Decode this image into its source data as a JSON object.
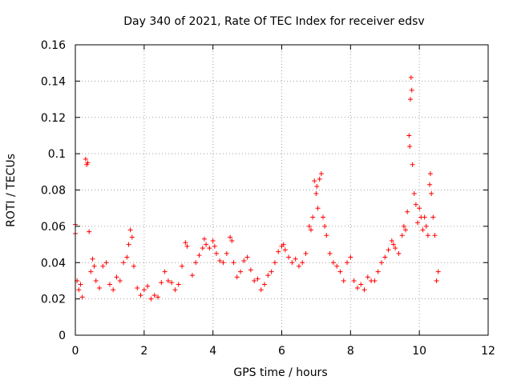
{
  "chart_data": {
    "type": "scatter",
    "title": "Day 340 of 2021, Rate Of TEC Index for receiver edsv",
    "xlabel": "GPS time / hours",
    "ylabel": "ROTI / TECUs",
    "xlim": [
      0,
      12
    ],
    "ylim": [
      0,
      0.16
    ],
    "xticks": [
      0,
      2,
      4,
      6,
      8,
      10,
      12
    ],
    "xtick_labels": [
      "0",
      "2",
      "4",
      "6",
      "8",
      "10",
      "12"
    ],
    "yticks": [
      0,
      0.02,
      0.04,
      0.06,
      0.08,
      0.1,
      0.12,
      0.14,
      0.16
    ],
    "ytick_labels": [
      "0",
      "0.02",
      "0.04",
      "0.06",
      "0.08",
      "0.1",
      "0.12",
      "0.14",
      "0.16"
    ],
    "grid": true,
    "marker": "+",
    "marker_color": "#ff0000",
    "series": [
      {
        "name": "ROTI",
        "points": [
          [
            0.0,
            0.061
          ],
          [
            0.0,
            0.056
          ],
          [
            0.05,
            0.03
          ],
          [
            0.1,
            0.025
          ],
          [
            0.15,
            0.028
          ],
          [
            0.2,
            0.021
          ],
          [
            0.3,
            0.097
          ],
          [
            0.33,
            0.094
          ],
          [
            0.36,
            0.095
          ],
          [
            0.4,
            0.057
          ],
          [
            0.45,
            0.035
          ],
          [
            0.5,
            0.042
          ],
          [
            0.55,
            0.038
          ],
          [
            0.6,
            0.03
          ],
          [
            0.7,
            0.026
          ],
          [
            0.8,
            0.038
          ],
          [
            0.9,
            0.04
          ],
          [
            1.0,
            0.028
          ],
          [
            1.1,
            0.025
          ],
          [
            1.2,
            0.032
          ],
          [
            1.3,
            0.03
          ],
          [
            1.4,
            0.04
          ],
          [
            1.5,
            0.043
          ],
          [
            1.55,
            0.05
          ],
          [
            1.6,
            0.058
          ],
          [
            1.65,
            0.054
          ],
          [
            1.7,
            0.038
          ],
          [
            1.8,
            0.026
          ],
          [
            1.9,
            0.022
          ],
          [
            2.0,
            0.025
          ],
          [
            2.1,
            0.027
          ],
          [
            2.2,
            0.02
          ],
          [
            2.3,
            0.022
          ],
          [
            2.4,
            0.021
          ],
          [
            2.5,
            0.029
          ],
          [
            2.6,
            0.035
          ],
          [
            2.7,
            0.03
          ],
          [
            2.8,
            0.029
          ],
          [
            2.9,
            0.025
          ],
          [
            3.0,
            0.028
          ],
          [
            3.1,
            0.038
          ],
          [
            3.2,
            0.051
          ],
          [
            3.25,
            0.049
          ],
          [
            3.4,
            0.033
          ],
          [
            3.5,
            0.04
          ],
          [
            3.6,
            0.044
          ],
          [
            3.7,
            0.048
          ],
          [
            3.75,
            0.053
          ],
          [
            3.8,
            0.05
          ],
          [
            3.9,
            0.048
          ],
          [
            4.0,
            0.052
          ],
          [
            4.05,
            0.049
          ],
          [
            4.1,
            0.045
          ],
          [
            4.2,
            0.041
          ],
          [
            4.3,
            0.04
          ],
          [
            4.4,
            0.045
          ],
          [
            4.5,
            0.054
          ],
          [
            4.55,
            0.052
          ],
          [
            4.6,
            0.04
          ],
          [
            4.7,
            0.032
          ],
          [
            4.8,
            0.035
          ],
          [
            4.9,
            0.041
          ],
          [
            5.0,
            0.043
          ],
          [
            5.1,
            0.036
          ],
          [
            5.2,
            0.03
          ],
          [
            5.3,
            0.031
          ],
          [
            5.4,
            0.025
          ],
          [
            5.5,
            0.028
          ],
          [
            5.6,
            0.033
          ],
          [
            5.7,
            0.035
          ],
          [
            5.8,
            0.04
          ],
          [
            5.9,
            0.046
          ],
          [
            6.0,
            0.049
          ],
          [
            6.05,
            0.05
          ],
          [
            6.1,
            0.047
          ],
          [
            6.2,
            0.043
          ],
          [
            6.3,
            0.04
          ],
          [
            6.4,
            0.042
          ],
          [
            6.5,
            0.038
          ],
          [
            6.6,
            0.04
          ],
          [
            6.7,
            0.045
          ],
          [
            6.8,
            0.06
          ],
          [
            6.85,
            0.058
          ],
          [
            6.9,
            0.065
          ],
          [
            6.95,
            0.085
          ],
          [
            7.0,
            0.078
          ],
          [
            7.02,
            0.082
          ],
          [
            7.05,
            0.07
          ],
          [
            7.1,
            0.086
          ],
          [
            7.15,
            0.089
          ],
          [
            7.2,
            0.065
          ],
          [
            7.25,
            0.06
          ],
          [
            7.3,
            0.055
          ],
          [
            7.4,
            0.045
          ],
          [
            7.5,
            0.04
          ],
          [
            7.6,
            0.038
          ],
          [
            7.7,
            0.035
          ],
          [
            7.8,
            0.03
          ],
          [
            7.9,
            0.04
          ],
          [
            8.0,
            0.043
          ],
          [
            8.1,
            0.03
          ],
          [
            8.2,
            0.026
          ],
          [
            8.3,
            0.028
          ],
          [
            8.4,
            0.025
          ],
          [
            8.5,
            0.032
          ],
          [
            8.6,
            0.03
          ],
          [
            8.7,
            0.03
          ],
          [
            8.8,
            0.035
          ],
          [
            8.9,
            0.04
          ],
          [
            9.0,
            0.043
          ],
          [
            9.1,
            0.047
          ],
          [
            9.2,
            0.052
          ],
          [
            9.25,
            0.05
          ],
          [
            9.3,
            0.048
          ],
          [
            9.4,
            0.045
          ],
          [
            9.5,
            0.055
          ],
          [
            9.55,
            0.06
          ],
          [
            9.6,
            0.058
          ],
          [
            9.65,
            0.068
          ],
          [
            9.7,
            0.11
          ],
          [
            9.72,
            0.104
          ],
          [
            9.74,
            0.13
          ],
          [
            9.76,
            0.142
          ],
          [
            9.78,
            0.135
          ],
          [
            9.8,
            0.094
          ],
          [
            9.85,
            0.078
          ],
          [
            9.9,
            0.072
          ],
          [
            9.95,
            0.062
          ],
          [
            10.0,
            0.07
          ],
          [
            10.05,
            0.065
          ],
          [
            10.1,
            0.058
          ],
          [
            10.15,
            0.065
          ],
          [
            10.2,
            0.06
          ],
          [
            10.25,
            0.055
          ],
          [
            10.3,
            0.083
          ],
          [
            10.32,
            0.089
          ],
          [
            10.35,
            0.078
          ],
          [
            10.4,
            0.065
          ],
          [
            10.45,
            0.055
          ],
          [
            10.5,
            0.03
          ],
          [
            10.55,
            0.035
          ]
        ]
      }
    ]
  }
}
